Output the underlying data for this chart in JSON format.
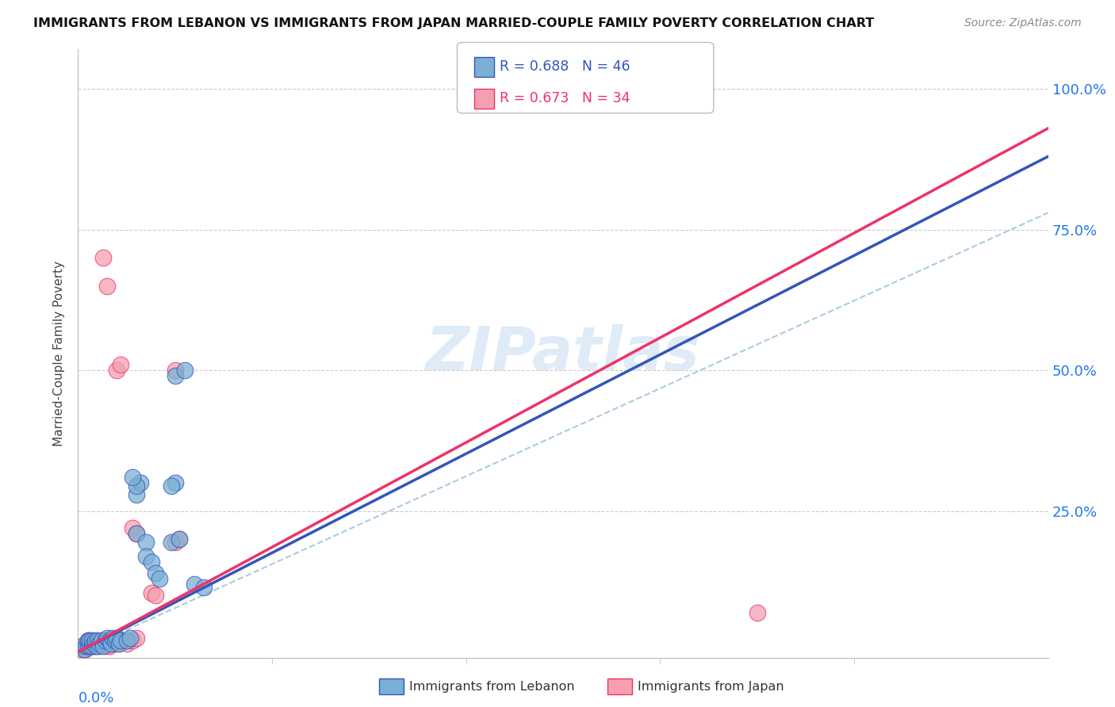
{
  "title": "IMMIGRANTS FROM LEBANON VS IMMIGRANTS FROM JAPAN MARRIED-COUPLE FAMILY POVERTY CORRELATION CHART",
  "source": "Source: ZipAtlas.com",
  "ylabel": "Married-Couple Family Poverty",
  "legend1_label": "Immigrants from Lebanon",
  "legend2_label": "Immigrants from Japan",
  "R1": 0.688,
  "N1": 46,
  "R2": 0.673,
  "N2": 34,
  "color_lebanon": "#7BAFD4",
  "color_japan": "#F4A0B0",
  "color_line_lebanon": "#3355BB",
  "color_line_japan": "#EE3366",
  "color_dashed": "#AACCDD",
  "watermark": "ZIPatlas",
  "xlim": [
    0.0,
    0.5
  ],
  "ylim": [
    -0.01,
    1.07
  ],
  "yticks": [
    0.0,
    0.25,
    0.5,
    0.75,
    1.0
  ],
  "ytick_labels": [
    "",
    "25.0%",
    "50.0%",
    "75.0%",
    "100.0%"
  ],
  "line_lebanon": [
    0.0,
    0.0,
    0.5,
    0.88
  ],
  "line_japan": [
    0.0,
    0.0,
    0.5,
    0.93
  ],
  "line_dashed": [
    0.0,
    0.0,
    0.5,
    0.78
  ],
  "lebanon_x": [
    0.002,
    0.003,
    0.004,
    0.005,
    0.005,
    0.006,
    0.006,
    0.007,
    0.007,
    0.008,
    0.009,
    0.009,
    0.01,
    0.01,
    0.011,
    0.012,
    0.013,
    0.014,
    0.015,
    0.016,
    0.017,
    0.018,
    0.019,
    0.02,
    0.021,
    0.022,
    0.025,
    0.027,
    0.05,
    0.055,
    0.03,
    0.032,
    0.048,
    0.052,
    0.03,
    0.035,
    0.035,
    0.038,
    0.04,
    0.042,
    0.06,
    0.065,
    0.03,
    0.05,
    0.028,
    0.048
  ],
  "lebanon_y": [
    0.01,
    0.005,
    0.01,
    0.01,
    0.02,
    0.01,
    0.02,
    0.01,
    0.02,
    0.015,
    0.01,
    0.02,
    0.01,
    0.02,
    0.015,
    0.02,
    0.01,
    0.02,
    0.025,
    0.02,
    0.015,
    0.025,
    0.02,
    0.025,
    0.015,
    0.02,
    0.02,
    0.025,
    0.49,
    0.5,
    0.28,
    0.3,
    0.195,
    0.2,
    0.21,
    0.195,
    0.17,
    0.16,
    0.14,
    0.13,
    0.12,
    0.115,
    0.295,
    0.3,
    0.31,
    0.295
  ],
  "japan_x": [
    0.002,
    0.003,
    0.004,
    0.005,
    0.005,
    0.006,
    0.007,
    0.008,
    0.009,
    0.01,
    0.011,
    0.012,
    0.013,
    0.014,
    0.015,
    0.016,
    0.018,
    0.02,
    0.022,
    0.025,
    0.028,
    0.03,
    0.013,
    0.015,
    0.02,
    0.022,
    0.05,
    0.052,
    0.038,
    0.04,
    0.35,
    0.028,
    0.03,
    0.05
  ],
  "japan_y": [
    0.005,
    0.01,
    0.005,
    0.01,
    0.02,
    0.015,
    0.01,
    0.015,
    0.01,
    0.015,
    0.01,
    0.015,
    0.02,
    0.01,
    0.015,
    0.01,
    0.015,
    0.015,
    0.02,
    0.015,
    0.02,
    0.025,
    0.7,
    0.65,
    0.5,
    0.51,
    0.195,
    0.2,
    0.105,
    0.1,
    0.07,
    0.22,
    0.21,
    0.5
  ]
}
